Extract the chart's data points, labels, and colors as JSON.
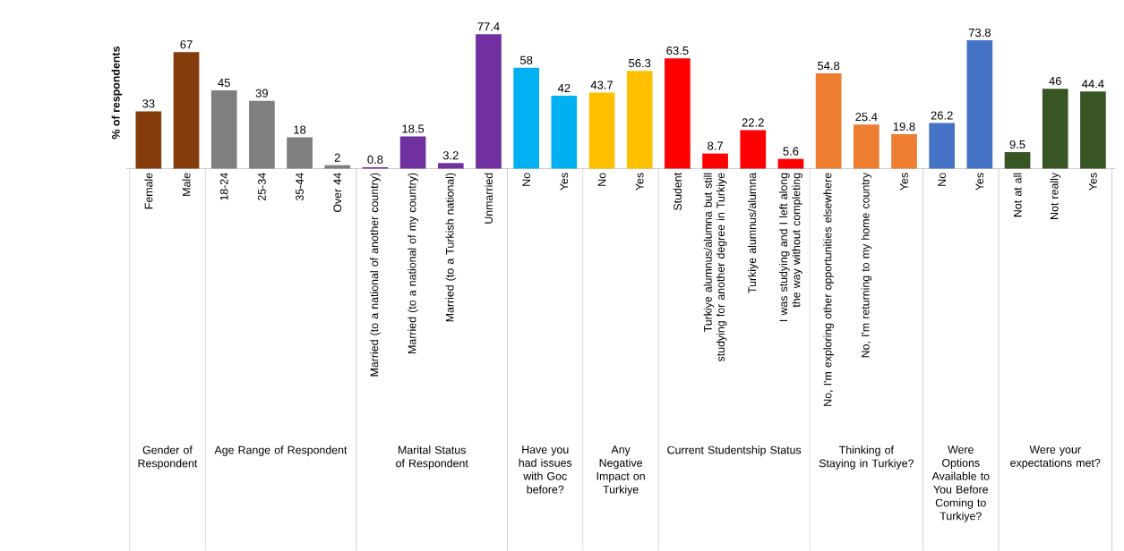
{
  "chart_data": {
    "type": "bar",
    "ylabel": "% of respondents",
    "data_labels": true,
    "categories": [
      "Female",
      "Male",
      "18-24",
      "25-34",
      "35-44",
      "Over 44",
      "Married (to a national of another country)",
      "Married (to a national of my country)",
      "Married (to a Turkish national)",
      "Unmarried",
      "No",
      "Yes",
      "No",
      "Yes",
      "Student",
      "Turkiye alumnus/alumna but still studying for another degree in Turkiye",
      "Turkiye alumnus/alumna",
      "I was studying and I left along the way without completing",
      "No, I'm exploring other opportunities elsewhere",
      "No, I'm returning to my home country",
      "Yes",
      "No",
      "Yes",
      "Not at all",
      "Not really",
      "Yes"
    ],
    "values": [
      33,
      67,
      45,
      39,
      18,
      2,
      0.8,
      18.5,
      3.2,
      77.4,
      58,
      42,
      43.7,
      56.3,
      63.5,
      8.7,
      22.2,
      5.6,
      54.8,
      25.4,
      19.8,
      26.2,
      73.8,
      9.5,
      46,
      44.4
    ],
    "colors": [
      "#843c0c",
      "#843c0c",
      "#7f7f7f",
      "#7f7f7f",
      "#7f7f7f",
      "#7f7f7f",
      "#7030a0",
      "#7030a0",
      "#7030a0",
      "#7030a0",
      "#00b0f0",
      "#00b0f0",
      "#ffc000",
      "#ffc000",
      "#ff0000",
      "#ff0000",
      "#ff0000",
      "#ff0000",
      "#ed7d31",
      "#ed7d31",
      "#ed7d31",
      "#4472c4",
      "#4472c4",
      "#375623",
      "#375623",
      "#375623"
    ],
    "annotations": [
      "Gender of Respondent",
      "Age Range of Respondent",
      "Marital Status of Respondent",
      "Have you had issues with Goc before?",
      "Any Negative Impact on Turkiye",
      "Current Studentship Status",
      "Thinking of Staying in Turkiye?",
      "Were Options Available to You Before Coming to Turkiye?",
      "Were your expectations met?"
    ]
  }
}
